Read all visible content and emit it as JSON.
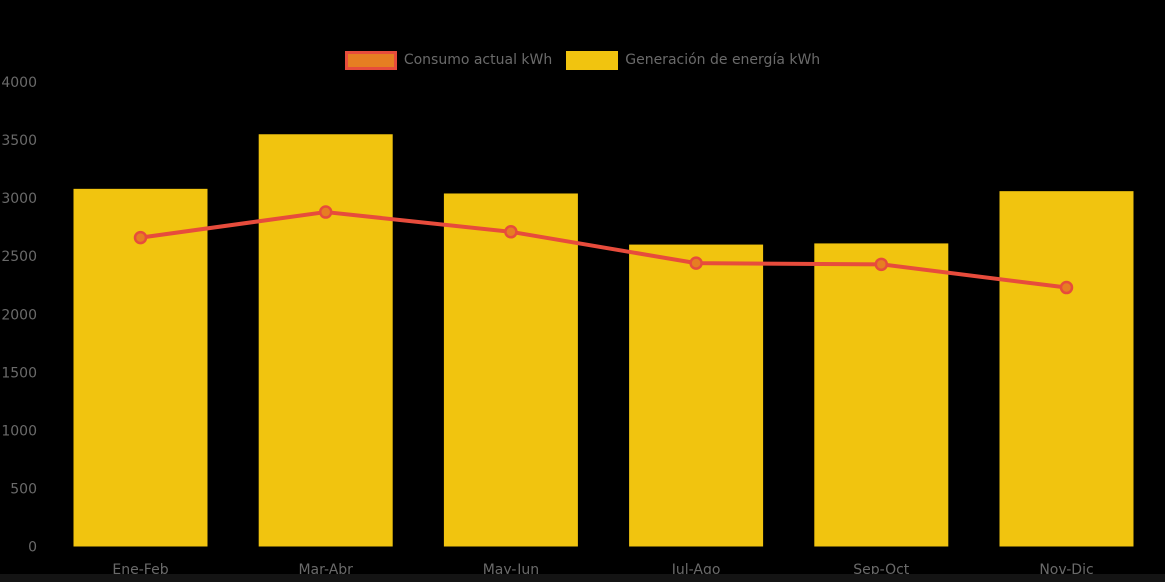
{
  "page": {
    "background": "#000000"
  },
  "legend": {
    "items": [
      {
        "label": "Consumo actual kWh",
        "swatch_fill": "#E67E22",
        "swatch_border": "#E74C3C"
      },
      {
        "label": "Generación de energía kWh",
        "swatch_fill": "#F1C40F",
        "swatch_border": "#F1C40F"
      }
    ]
  },
  "chart_data": {
    "type": "combo-bar-line",
    "title": "",
    "xlabel": "",
    "ylabel": "",
    "categories": [
      "Ene-Feb",
      "Mar-Abr",
      "May-Jun",
      "Jul-Ago",
      "Sep-Oct",
      "Nov-Dic"
    ],
    "series": [
      {
        "name": "Generación de energía kWh",
        "type": "bar",
        "color": "#F1C40F",
        "values": [
          3080,
          3550,
          3040,
          2600,
          2610,
          3060
        ]
      },
      {
        "name": "Consumo actual kWh",
        "type": "line",
        "color": "#E74C3C",
        "marker_fill": "#E67E22",
        "values": [
          2660,
          2880,
          2710,
          2440,
          2430,
          2230
        ]
      }
    ],
    "ylim": [
      0,
      4000
    ],
    "y_ticks": [
      0,
      500,
      1000,
      1500,
      2000,
      2500,
      3000,
      3500,
      4000
    ],
    "grid": false,
    "legend_position": "top-center",
    "axis_text_color": "#6A6A6A",
    "background_color": "#000000"
  }
}
